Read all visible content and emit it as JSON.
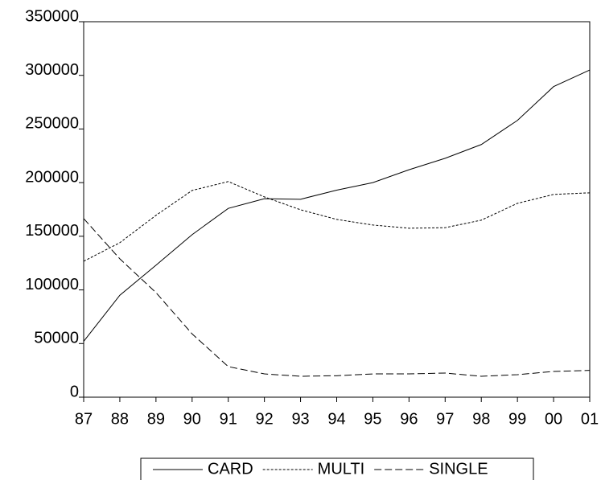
{
  "chart_data": {
    "type": "line",
    "categories": [
      "87",
      "88",
      "89",
      "90",
      "91",
      "92",
      "93",
      "94",
      "95",
      "96",
      "97",
      "98",
      "99",
      "00",
      "01"
    ],
    "series": [
      {
        "name": "CARD",
        "color": "#000000",
        "dash": "none",
        "values": [
          52000,
          95000,
          123000,
          151500,
          176000,
          185000,
          184500,
          193000,
          200000,
          212000,
          222700,
          235500,
          258000,
          289500,
          305000
        ]
      },
      {
        "name": "MULTI",
        "color": "#000000",
        "dash": "3,2",
        "values": [
          126700,
          144000,
          169500,
          192700,
          201000,
          186700,
          174700,
          165700,
          160500,
          157500,
          158000,
          165000,
          180700,
          189000,
          190500
        ]
      },
      {
        "name": "SINGLE",
        "color": "#000000",
        "dash": "9,4",
        "values": [
          166500,
          129000,
          97500,
          59000,
          28500,
          21700,
          19500,
          20000,
          21700,
          21700,
          22500,
          19500,
          21000,
          24000,
          25000
        ]
      }
    ],
    "ylim": [
      0,
      350000
    ],
    "yticks": [
      0,
      50000,
      100000,
      150000,
      200000,
      250000,
      300000,
      350000
    ]
  }
}
